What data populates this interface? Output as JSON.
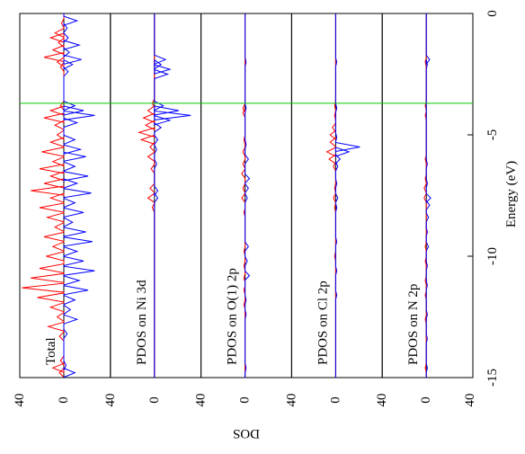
{
  "chart_data": {
    "type": "line",
    "orientation": "rotated-90",
    "energy_axis": {
      "label": "Energy (eV)",
      "range": [
        -15,
        0
      ],
      "ticks": [
        0,
        -5,
        -10,
        -15
      ],
      "tick_labels": [
        "0",
        "-5",
        "-10",
        "-15"
      ]
    },
    "dos_axis": {
      "label": "DOS",
      "tick_labels": [
        "40",
        "0",
        "40"
      ]
    },
    "fermi_level": -3.7,
    "fermi_color": "#00cc00",
    "series_colors": {
      "spin_up": "#ff0000",
      "spin_down": "#0000ff"
    },
    "panels": [
      {
        "label": "Total",
        "up": [
          [
            -0.4,
            2
          ],
          [
            -0.8,
            8
          ],
          [
            -1.0,
            12
          ],
          [
            -1.2,
            5
          ],
          [
            -1.5,
            10
          ],
          [
            -1.8,
            18
          ],
          [
            -2.0,
            6
          ],
          [
            -2.2,
            3
          ],
          [
            -3.8,
            3
          ],
          [
            -4.0,
            12
          ],
          [
            -4.3,
            18
          ],
          [
            -4.6,
            8
          ],
          [
            -5.0,
            6
          ],
          [
            -5.3,
            12
          ],
          [
            -5.7,
            20
          ],
          [
            -6.1,
            10
          ],
          [
            -6.4,
            22
          ],
          [
            -6.7,
            12
          ],
          [
            -7.0,
            18
          ],
          [
            -7.3,
            30
          ],
          [
            -7.6,
            12
          ],
          [
            -8.0,
            22
          ],
          [
            -8.4,
            15
          ],
          [
            -8.8,
            8
          ],
          [
            -9.2,
            18
          ],
          [
            -9.6,
            10
          ],
          [
            -10.0,
            16
          ],
          [
            -10.5,
            22
          ],
          [
            -10.9,
            30
          ],
          [
            -11.3,
            38
          ],
          [
            -11.7,
            24
          ],
          [
            -12.1,
            12
          ],
          [
            -12.5,
            6
          ],
          [
            -12.9,
            14
          ],
          [
            -13.3,
            4
          ],
          [
            -14.3,
            3
          ],
          [
            -14.6,
            10
          ],
          [
            -14.8,
            4
          ]
        ],
        "down": [
          [
            -0.3,
            12
          ],
          [
            -0.6,
            3
          ],
          [
            -1.0,
            4
          ],
          [
            -1.3,
            14
          ],
          [
            -1.6,
            5
          ],
          [
            -1.9,
            16
          ],
          [
            -2.1,
            8
          ],
          [
            -2.4,
            4
          ],
          [
            -3.8,
            10
          ],
          [
            -4.0,
            18
          ],
          [
            -4.2,
            28
          ],
          [
            -4.5,
            12
          ],
          [
            -5.2,
            10
          ],
          [
            -5.6,
            15
          ],
          [
            -5.9,
            20
          ],
          [
            -6.3,
            10
          ],
          [
            -6.7,
            22
          ],
          [
            -7.0,
            12
          ],
          [
            -7.4,
            25
          ],
          [
            -7.8,
            10
          ],
          [
            -8.2,
            18
          ],
          [
            -8.6,
            8
          ],
          [
            -9.0,
            20
          ],
          [
            -9.4,
            26
          ],
          [
            -9.8,
            12
          ],
          [
            -10.2,
            18
          ],
          [
            -10.6,
            28
          ],
          [
            -11.0,
            14
          ],
          [
            -11.4,
            22
          ],
          [
            -11.8,
            10
          ],
          [
            -12.2,
            6
          ],
          [
            -12.6,
            12
          ],
          [
            -13.2,
            3
          ],
          [
            -14.5,
            2
          ],
          [
            -14.8,
            10
          ]
        ]
      },
      {
        "label": "PDOS on Ni 3d",
        "up": [
          [
            -3.7,
            2
          ],
          [
            -4.0,
            6
          ],
          [
            -4.3,
            10
          ],
          [
            -4.6,
            8
          ],
          [
            -4.9,
            14
          ],
          [
            -5.2,
            12
          ],
          [
            -5.5,
            4
          ],
          [
            -5.9,
            6
          ],
          [
            -6.4,
            3
          ],
          [
            -7.2,
            4
          ],
          [
            -7.6,
            6
          ],
          [
            -8.0,
            2
          ]
        ],
        "down": [
          [
            -1.9,
            10
          ],
          [
            -2.1,
            6
          ],
          [
            -2.3,
            14
          ],
          [
            -2.5,
            12
          ],
          [
            -3.8,
            8
          ],
          [
            -4.0,
            22
          ],
          [
            -4.2,
            33
          ],
          [
            -4.4,
            14
          ],
          [
            -4.7,
            6
          ],
          [
            -5.2,
            3
          ],
          [
            -5.6,
            2
          ],
          [
            -6.2,
            2
          ],
          [
            -7.3,
            3
          ],
          [
            -7.6,
            3
          ]
        ]
      },
      {
        "label": "PDOS on O(1) 2p",
        "up": [
          [
            -3.9,
            2
          ],
          [
            -4.1,
            2
          ],
          [
            -5.2,
            1
          ],
          [
            -5.7,
            2
          ],
          [
            -6.2,
            2
          ],
          [
            -6.6,
            3
          ],
          [
            -7.2,
            2
          ],
          [
            -7.6,
            3
          ],
          [
            -8.2,
            1
          ],
          [
            -9.8,
            1
          ],
          [
            -10.4,
            1
          ],
          [
            -10.9,
            1
          ],
          [
            -11.4,
            1
          ],
          [
            -12.0,
            1
          ]
        ],
        "down": [
          [
            -2.0,
            1
          ],
          [
            -3.9,
            1
          ],
          [
            -5.4,
            1
          ],
          [
            -6.0,
            3
          ],
          [
            -6.8,
            4
          ],
          [
            -7.2,
            3
          ],
          [
            -7.6,
            2
          ],
          [
            -9.6,
            3
          ],
          [
            -10.2,
            2
          ],
          [
            -10.8,
            4
          ],
          [
            -11.8,
            1
          ],
          [
            -12.4,
            1
          ],
          [
            -14.6,
            1
          ]
        ]
      },
      {
        "label": "PDOS on Cl 2p",
        "up": [
          [
            -3.8,
            1
          ],
          [
            -4.2,
            1
          ],
          [
            -4.7,
            3
          ],
          [
            -5.0,
            5
          ],
          [
            -5.3,
            5
          ],
          [
            -5.7,
            8
          ],
          [
            -6.0,
            6
          ],
          [
            -6.3,
            2
          ],
          [
            -7.2,
            1
          ],
          [
            -7.6,
            2
          ],
          [
            -8.0,
            1
          ],
          [
            -10.0,
            1
          ]
        ],
        "down": [
          [
            -2.0,
            1
          ],
          [
            -3.9,
            1
          ],
          [
            -5.1,
            1
          ],
          [
            -5.5,
            22
          ],
          [
            -5.7,
            12
          ],
          [
            -6.0,
            4
          ],
          [
            -6.3,
            2
          ],
          [
            -7.0,
            1
          ],
          [
            -7.6,
            2
          ],
          [
            -8.0,
            1
          ],
          [
            -9.4,
            1
          ],
          [
            -10.6,
            1
          ],
          [
            -11.6,
            1
          ]
        ]
      },
      {
        "label": "PDOS on N 2p",
        "up": [
          [
            -2.0,
            1
          ],
          [
            -3.8,
            1
          ],
          [
            -4.2,
            1
          ],
          [
            -6.0,
            1
          ],
          [
            -6.8,
            1
          ],
          [
            -7.2,
            2
          ],
          [
            -7.6,
            2
          ],
          [
            -9.6,
            1
          ],
          [
            -10.2,
            1
          ],
          [
            -11.0,
            1
          ],
          [
            -11.6,
            1
          ],
          [
            -12.6,
            1
          ],
          [
            -14.6,
            1
          ]
        ],
        "down": [
          [
            -1.9,
            3
          ],
          [
            -2.1,
            1
          ],
          [
            -6.2,
            1
          ],
          [
            -7.0,
            1
          ],
          [
            -7.6,
            4
          ],
          [
            -7.9,
            3
          ],
          [
            -8.4,
            2
          ],
          [
            -9.0,
            1
          ],
          [
            -9.6,
            2
          ],
          [
            -10.4,
            1
          ],
          [
            -11.2,
            1
          ],
          [
            -12.4,
            1
          ],
          [
            -13.4,
            1
          ],
          [
            -14.6,
            1
          ]
        ]
      }
    ]
  }
}
